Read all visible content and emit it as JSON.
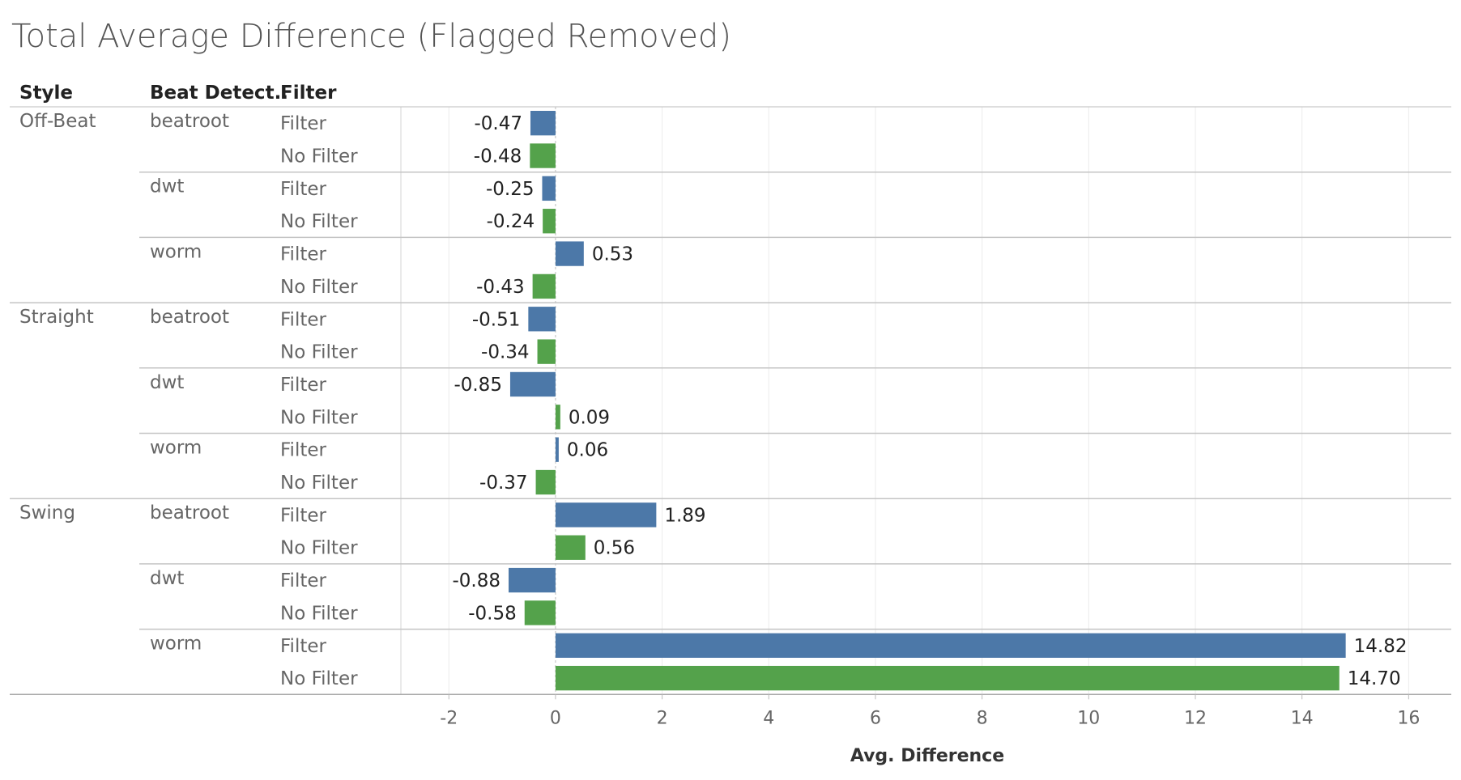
{
  "chart_data": {
    "type": "bar",
    "orientation": "horizontal",
    "title": "Total Average Difference (Flagged Removed)",
    "headers": [
      "Style",
      "Beat Detect..",
      "Filter"
    ],
    "xlabel": "Avg. Difference",
    "xlim": [
      -2.9,
      16.8
    ],
    "xticks": [
      -2,
      0,
      2,
      4,
      6,
      8,
      10,
      12,
      14,
      16
    ],
    "grid": true,
    "colors": {
      "Filter": "#4c78a8",
      "No Filter": "#54a24b"
    },
    "groups": [
      {
        "style": "Off-Beat",
        "detectors": [
          {
            "name": "beatroot",
            "rows": [
              {
                "filter": "Filter",
                "value": -0.47,
                "label": "-0.47"
              },
              {
                "filter": "No Filter",
                "value": -0.48,
                "label": "-0.48"
              }
            ]
          },
          {
            "name": "dwt",
            "rows": [
              {
                "filter": "Filter",
                "value": -0.25,
                "label": "-0.25"
              },
              {
                "filter": "No Filter",
                "value": -0.24,
                "label": "-0.24"
              }
            ]
          },
          {
            "name": "worm",
            "rows": [
              {
                "filter": "Filter",
                "value": 0.53,
                "label": "0.53"
              },
              {
                "filter": "No Filter",
                "value": -0.43,
                "label": "-0.43"
              }
            ]
          }
        ]
      },
      {
        "style": "Straight",
        "detectors": [
          {
            "name": "beatroot",
            "rows": [
              {
                "filter": "Filter",
                "value": -0.51,
                "label": "-0.51"
              },
              {
                "filter": "No Filter",
                "value": -0.34,
                "label": "-0.34"
              }
            ]
          },
          {
            "name": "dwt",
            "rows": [
              {
                "filter": "Filter",
                "value": -0.85,
                "label": "-0.85"
              },
              {
                "filter": "No Filter",
                "value": 0.09,
                "label": "0.09"
              }
            ]
          },
          {
            "name": "worm",
            "rows": [
              {
                "filter": "Filter",
                "value": 0.06,
                "label": "0.06"
              },
              {
                "filter": "No Filter",
                "value": -0.37,
                "label": "-0.37"
              }
            ]
          }
        ]
      },
      {
        "style": "Swing",
        "detectors": [
          {
            "name": "beatroot",
            "rows": [
              {
                "filter": "Filter",
                "value": 1.89,
                "label": "1.89"
              },
              {
                "filter": "No Filter",
                "value": 0.56,
                "label": "0.56"
              }
            ]
          },
          {
            "name": "dwt",
            "rows": [
              {
                "filter": "Filter",
                "value": -0.88,
                "label": "-0.88"
              },
              {
                "filter": "No Filter",
                "value": -0.58,
                "label": "-0.58"
              }
            ]
          },
          {
            "name": "worm",
            "rows": [
              {
                "filter": "Filter",
                "value": 14.82,
                "label": "14.82"
              },
              {
                "filter": "No Filter",
                "value": 14.7,
                "label": "14.70"
              }
            ]
          }
        ]
      }
    ]
  }
}
